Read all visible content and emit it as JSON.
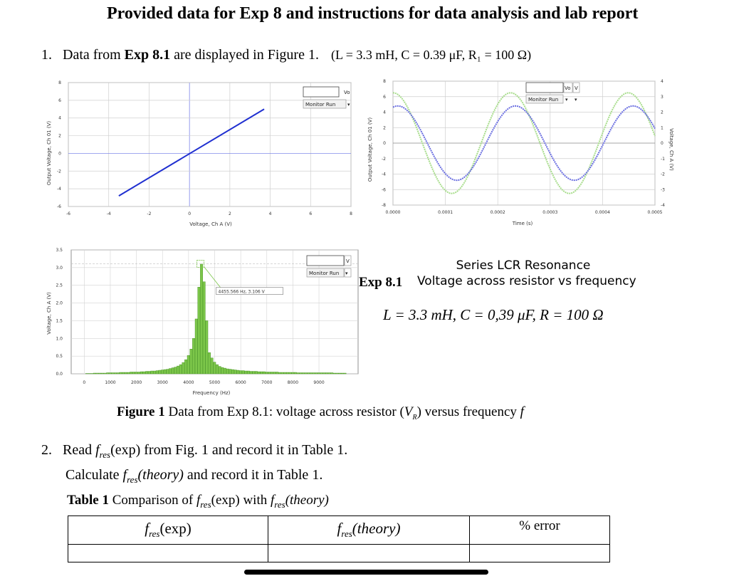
{
  "title": "Provided data for Exp 8 and instructions for data analysis and lab report",
  "item1": {
    "number": "1.",
    "text_before": "Data from ",
    "bold": "Exp 8.1",
    "text_after": " are displayed in Figure 1.",
    "params": "(L = 3.3 mH, C = 0.39 μF, R₁ = 100 Ω)"
  },
  "chart_data": [
    {
      "type": "line",
      "title": "",
      "xlabel": "Voltage, Ch A (V)",
      "ylabel": "Output Voltage, Ch 01 (V)",
      "xlim": [
        -6,
        8
      ],
      "ylim": [
        -6,
        8
      ],
      "x_ticks": [
        "-6",
        "-4",
        "-2",
        "0",
        "2",
        "4",
        "6",
        "8"
      ],
      "y_ticks": [
        "8",
        "6",
        "4",
        "2",
        "0",
        "-2",
        "-4",
        "-6"
      ],
      "series": [
        {
          "x": [
            -3.5,
            3.7
          ],
          "y": [
            -4.8,
            5.0
          ],
          "color": "#1f2fd0"
        }
      ],
      "control": {
        "channel": "Vo",
        "mode": "Monitor Run"
      },
      "grid": true
    },
    {
      "type": "line",
      "title": "",
      "xlabel": "Time (s)",
      "ylabel_left": "Output Voltage, Ch 01 (V)",
      "ylabel_right": "Voltage, Ch A (V)",
      "xlim": [
        0,
        0.0005
      ],
      "ylim_left": [
        -8,
        8
      ],
      "ylim_right": [
        -4,
        4
      ],
      "x_ticks": [
        "0.0000",
        "0.0001",
        "0.0002",
        "0.0003",
        "0.0004",
        "0.0005"
      ],
      "y_ticks_left": [
        "8",
        "6",
        "4",
        "2",
        "0",
        "-2",
        "-4",
        "-6",
        "-8"
      ],
      "y_ticks_right": [
        "4",
        "3",
        "2",
        "1",
        "0",
        "-1",
        "-2",
        "-3",
        "-4"
      ],
      "series": [
        {
          "amplitude": 6.5,
          "frequency_hz": 4455,
          "phase_deg": 90,
          "color": "#a8dd8c"
        },
        {
          "amplitude": 4.8,
          "frequency_hz": 4455,
          "phase_deg": 75,
          "color": "#6a6ee0"
        }
      ],
      "control": {
        "channel_a": "Vo",
        "channel_b": "V",
        "mode": "Monitor Run"
      },
      "grid": true
    },
    {
      "type": "bar",
      "title": "",
      "xlabel": "Frequency (Hz)",
      "ylabel": "Voltage, Ch A (V)",
      "xlim": [
        -500,
        10500
      ],
      "ylim": [
        0,
        3.5
      ],
      "x_ticks": [
        "0",
        "1000",
        "2000",
        "3000",
        "4000",
        "5000",
        "6000",
        "7000",
        "8000",
        "9000"
      ],
      "y_ticks": [
        "3.5",
        "3.0",
        "2.5",
        "2.0",
        "1.5",
        "1.0",
        "0.5",
        "0.0"
      ],
      "bar_width_hz": 100,
      "x": [
        100,
        200,
        300,
        400,
        500,
        600,
        700,
        800,
        900,
        1000,
        1100,
        1200,
        1300,
        1400,
        1500,
        1600,
        1700,
        1800,
        1900,
        2000,
        2100,
        2200,
        2300,
        2400,
        2500,
        2600,
        2700,
        2800,
        2900,
        3000,
        3100,
        3200,
        3300,
        3400,
        3500,
        3600,
        3700,
        3800,
        3900,
        4000,
        4100,
        4200,
        4300,
        4400,
        4500,
        4600,
        4700,
        4800,
        4900,
        5000,
        5100,
        5200,
        5300,
        5400,
        5500,
        5600,
        5700,
        5800,
        5900,
        6000,
        6100,
        6200,
        6300,
        6400,
        6500,
        6600,
        6700,
        6800,
        6900,
        7000,
        7100,
        7200,
        7300,
        7400,
        7500,
        7600,
        7700,
        7800,
        7900,
        8000,
        8100,
        8200,
        8300,
        8400,
        8500,
        8600,
        8700,
        8800,
        8900,
        9000,
        9100,
        9200,
        9300,
        9400,
        9500,
        9600,
        9700,
        9800,
        9900,
        10000
      ],
      "values": [
        0.01,
        0.01,
        0.01,
        0.02,
        0.02,
        0.02,
        0.02,
        0.02,
        0.03,
        0.03,
        0.03,
        0.03,
        0.03,
        0.04,
        0.04,
        0.04,
        0.04,
        0.05,
        0.05,
        0.05,
        0.05,
        0.06,
        0.06,
        0.07,
        0.07,
        0.08,
        0.08,
        0.09,
        0.1,
        0.11,
        0.12,
        0.13,
        0.15,
        0.17,
        0.19,
        0.22,
        0.26,
        0.32,
        0.4,
        0.52,
        0.7,
        1.0,
        1.55,
        2.45,
        3.1,
        2.6,
        1.5,
        0.6,
        0.45,
        0.33,
        0.26,
        0.21,
        0.18,
        0.16,
        0.14,
        0.13,
        0.12,
        0.11,
        0.1,
        0.09,
        0.09,
        0.08,
        0.08,
        0.07,
        0.07,
        0.07,
        0.06,
        0.06,
        0.06,
        0.05,
        0.05,
        0.05,
        0.05,
        0.05,
        0.04,
        0.04,
        0.04,
        0.04,
        0.04,
        0.04,
        0.04,
        0.03,
        0.03,
        0.03,
        0.03,
        0.03,
        0.03,
        0.03,
        0.03,
        0.03,
        0.03,
        0.03,
        0.03,
        0.03,
        0.03,
        0.02,
        0.02,
        0.02,
        0.02,
        0.02
      ],
      "annotation": "4455.566 Hz, 3.106 V",
      "peak": {
        "x": 4455.566,
        "y": 3.106
      },
      "control": {
        "channel": "V",
        "mode": "Monitor Run"
      },
      "grid": true
    }
  ],
  "exp_label": "Exp 8.1",
  "lcr_title": "Series LCR Resonance",
  "lcr_subtitle": "Voltage across resistor vs frequency",
  "lcr_params": "L = 3.3 mH,   C = 0,39 μF,   R = 100 Ω",
  "figure_caption": {
    "bold": "Figure 1",
    "text": " Data from Exp 8.1: voltage across resistor",
    "vr": "V",
    "vr_sub": "R",
    "text2": " versus frequency ",
    "f": "f"
  },
  "item2": {
    "number": "2.",
    "line1_a": "Read ",
    "line1_b": "(exp) from Fig. 1 and record it in Table 1.",
    "line2_a": "Calculate ",
    "line2_b": "(theory)",
    "line2_c": " and record it in Table 1."
  },
  "table_caption": {
    "bold": "Table 1",
    "text": " Comparison of ",
    "exp": "(exp) with ",
    "theory": "(theory)"
  },
  "symbols": {
    "f": "f",
    "res": "res"
  },
  "table1": {
    "headers": [
      {
        "f": "f",
        "sub": "res",
        "rest": "(exp)"
      },
      {
        "f": "f",
        "sub": "res",
        "rest": "(theory)"
      },
      {
        "text": "% error"
      }
    ],
    "row": [
      "",
      "",
      ""
    ]
  }
}
